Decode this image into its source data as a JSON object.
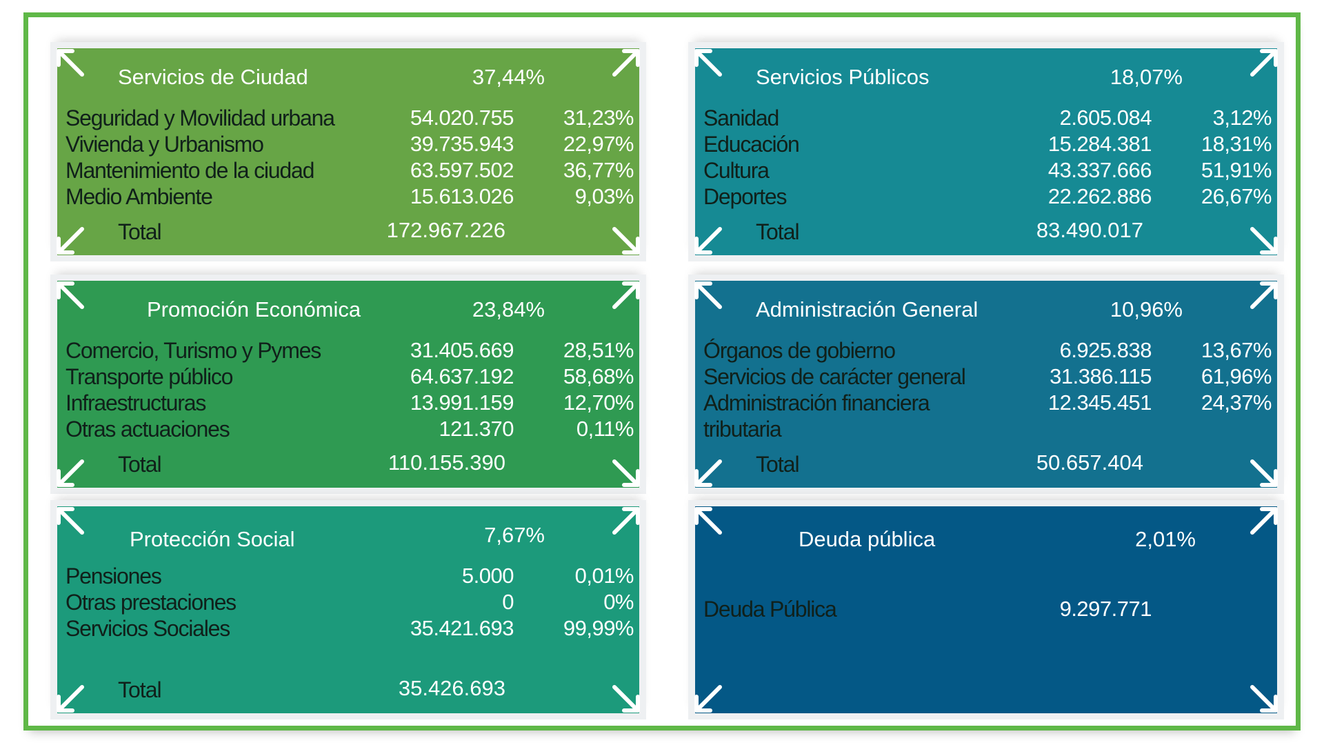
{
  "colors": [
    "#67a546",
    "#2f9a52",
    "#1c9a7b",
    "#168a94",
    "#13718f",
    "#045886"
  ],
  "panels": [
    {
      "title": "Servicios de Ciudad",
      "pct": "37,44%",
      "rows": [
        {
          "label": "Seguridad y Movilidad urbana",
          "amount": "54.020.755",
          "pct": "31,23%"
        },
        {
          "label": "Vivienda y Urbanismo",
          "amount": "39.735.943",
          "pct": "22,97%"
        },
        {
          "label": "Mantenimiento de la ciudad",
          "amount": "63.597.502",
          "pct": "36,77%"
        },
        {
          "label": "Medio Ambiente",
          "amount": "15.613.026",
          "pct": "9,03%"
        }
      ],
      "total_label": "Total",
      "total": "172.967.226"
    },
    {
      "title": "Promoción Económica",
      "pct": "23,84%",
      "rows": [
        {
          "label": "Comercio, Turismo y Pymes",
          "amount": "31.405.669",
          "pct": "28,51%"
        },
        {
          "label": "Transporte público",
          "amount": "64.637.192",
          "pct": "58,68%"
        },
        {
          "label": "Infraestructuras",
          "amount": "13.991.159",
          "pct": "12,70%"
        },
        {
          "label": "Otras actuaciones",
          "amount": "121.370",
          "pct": "0,11%"
        }
      ],
      "total_label": "Total",
      "total": "110.155.390"
    },
    {
      "title": "Protección Social",
      "pct": "7,67%",
      "rows": [
        {
          "label": "Pensiones",
          "amount": "5.000",
          "pct": "0,01%"
        },
        {
          "label": "Otras prestaciones",
          "amount": "0",
          "pct": "0%"
        },
        {
          "label": "Servicios Sociales",
          "amount": "35.421.693",
          "pct": "99,99%"
        }
      ],
      "total_label": "Total",
      "total": "35.426.693"
    },
    {
      "title": "Servicios Públicos",
      "pct": "18,07%",
      "rows": [
        {
          "label": "Sanidad",
          "amount": "2.605.084",
          "pct": "3,12%"
        },
        {
          "label": "Educación",
          "amount": "15.284.381",
          "pct": "18,31%"
        },
        {
          "label": "Cultura",
          "amount": "43.337.666",
          "pct": "51,91%"
        },
        {
          "label": "Deportes",
          "amount": "22.262.886",
          "pct": "26,67%"
        }
      ],
      "total_label": "Total",
      "total": "83.490.017"
    },
    {
      "title": "Administración General",
      "pct": "10,96%",
      "rows": [
        {
          "label": "Órganos de gobierno",
          "amount": "6.925.838",
          "pct": "13,67%"
        },
        {
          "label": "Servicios de carácter general",
          "amount": "31.386.115",
          "pct": "61,96%"
        },
        {
          "label": "Administración financiera tributaria",
          "amount": "12.345.451",
          "pct": "24,37%"
        }
      ],
      "total_label": "Total",
      "total": "50.657.404"
    },
    {
      "title": "Deuda pública",
      "pct": "2,01%",
      "rows": [
        {
          "label": "Deuda Pública",
          "amount": "9.297.771",
          "pct": ""
        }
      ],
      "total_label": "",
      "total": ""
    }
  ]
}
